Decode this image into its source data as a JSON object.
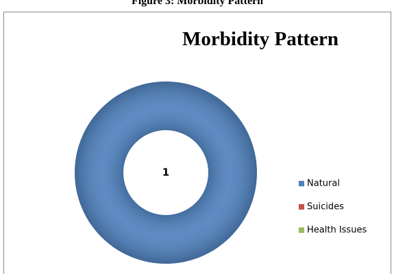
{
  "caption": "Figure 3: Morbidity Pattern",
  "chart_data": {
    "type": "doughnut",
    "title": "Morbidity Pattern",
    "categories": [
      "Natural",
      "Suicides",
      "Health Issues"
    ],
    "values": [
      1,
      0,
      0
    ],
    "colors": [
      "#4f81bd",
      "#c0504d",
      "#9bbb59"
    ],
    "legend": "right"
  }
}
